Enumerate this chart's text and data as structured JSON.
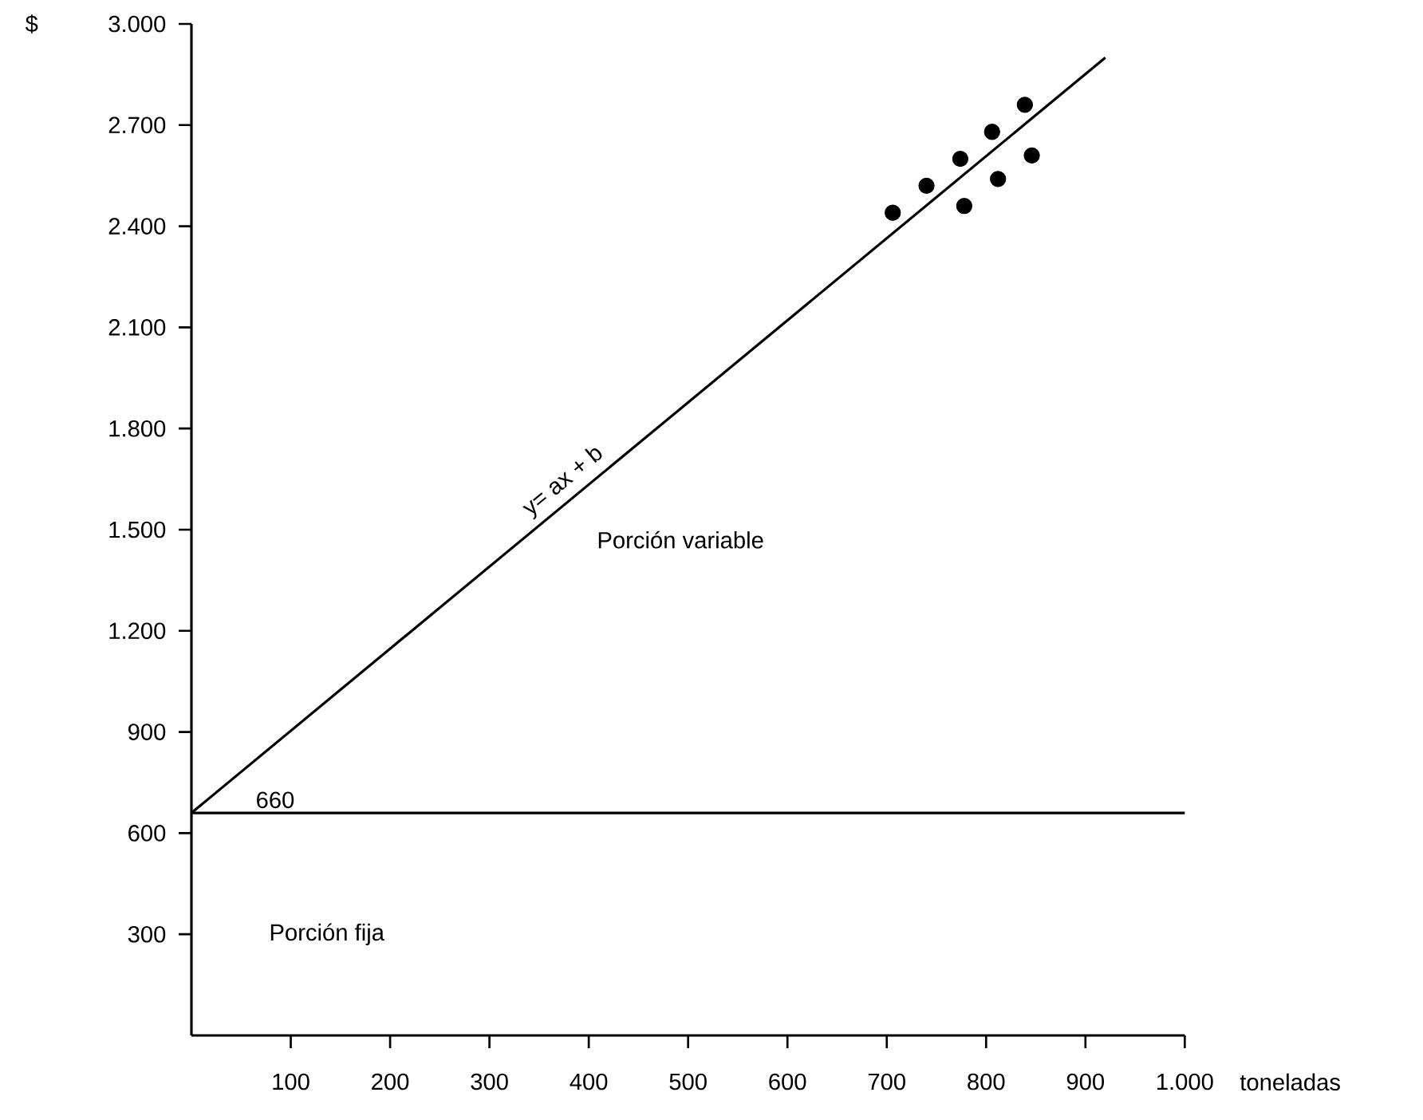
{
  "chart_data": {
    "type": "scatter",
    "xlabel": "toneladas",
    "ylabel": "$",
    "xlim": [
      0,
      1000
    ],
    "ylim": [
      0,
      3000
    ],
    "xticks": [
      100,
      200,
      300,
      400,
      500,
      600,
      700,
      800,
      900,
      {
        "value": 1000,
        "label": "1.000"
      }
    ],
    "yticks": [
      300,
      600,
      900,
      {
        "value": 1200,
        "label": "1.200"
      },
      {
        "value": 1500,
        "label": "1.500"
      },
      {
        "value": 1800,
        "label": "1.800"
      },
      {
        "value": 2100,
        "label": "2.100"
      },
      {
        "value": 2400,
        "label": "2.400"
      },
      {
        "value": 2700,
        "label": "2.700"
      },
      {
        "value": 3000,
        "label": "3.000"
      }
    ],
    "series": [
      {
        "type": "scatter",
        "color": "#000000",
        "marker": "circle",
        "x": [
          706,
          740,
          774,
          778,
          806,
          812,
          839,
          846
        ],
        "values": [
          2440,
          2520,
          2600,
          2460,
          2680,
          2540,
          2760,
          2610
        ]
      },
      {
        "type": "line",
        "name": "y= ax + b",
        "color": "#000000",
        "marker": "none",
        "line_style": "solid",
        "x": [
          0,
          920
        ],
        "values": [
          660,
          2900
        ]
      }
    ],
    "ref_lines": [
      {
        "axis": "y",
        "value": 660,
        "label": "660",
        "color": "#000000"
      }
    ],
    "annotations": [
      "Porción variable",
      "Porción fija"
    ],
    "grid": false,
    "legend": false
  }
}
